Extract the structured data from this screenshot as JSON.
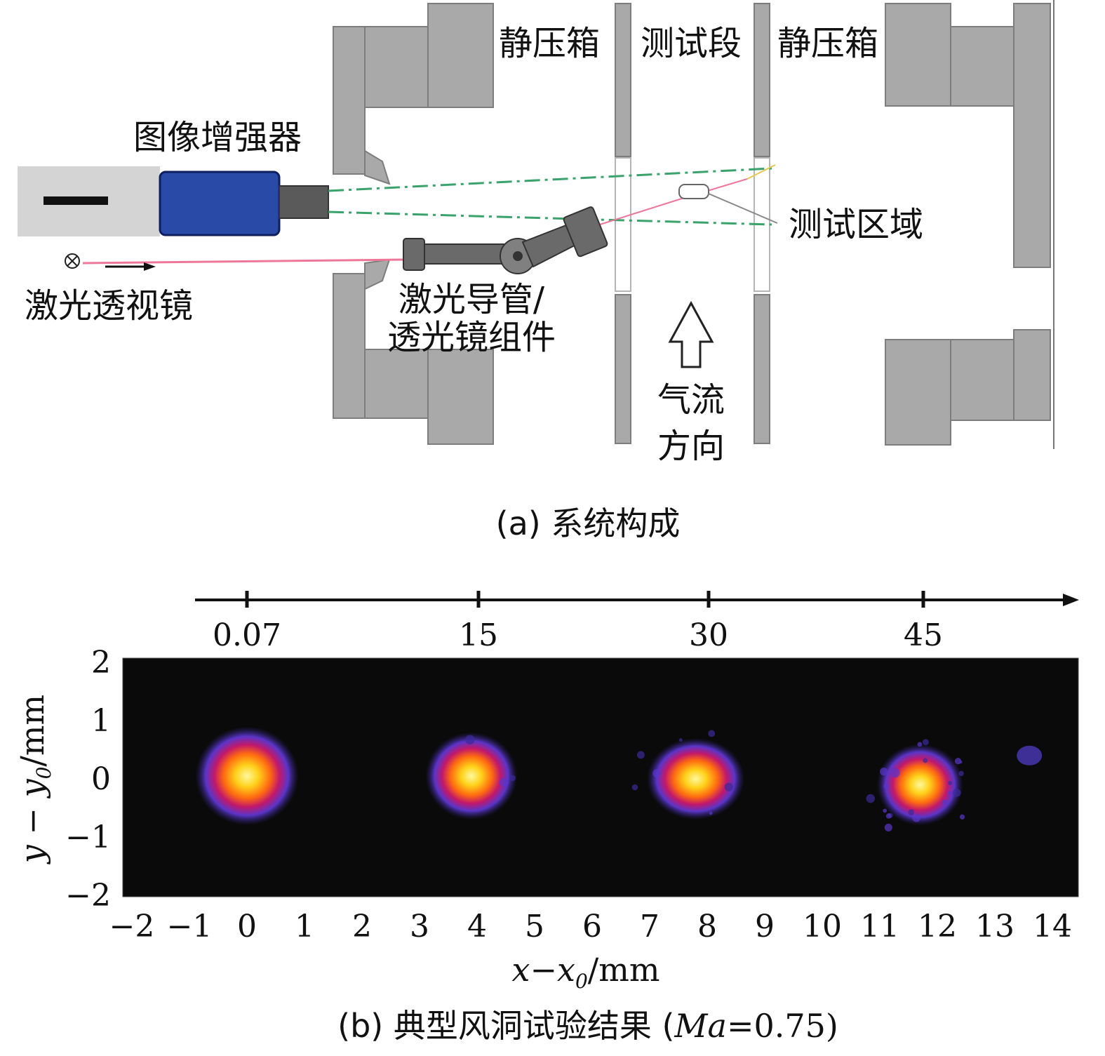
{
  "panel_a": {
    "labels": {
      "static_box_left": "静压箱",
      "test_section": "测试段",
      "static_box_right": "静压箱",
      "image_intensifier": "图像增强器",
      "test_region": "测试区域",
      "laser_viewer": "激光透视镜",
      "laser_guide_line1": "激光导管/",
      "laser_guide_line2": "透光镜组件",
      "airflow_line1": "气流",
      "airflow_line2": "方向"
    },
    "caption": "(a) 系统构成",
    "colors": {
      "wall": "#a9a9a9",
      "camera_body": "#d4d4d4",
      "intensifier": "#2a4aa8",
      "laser_beam": "#ee7799",
      "green_path": "#3aa36b"
    }
  },
  "panel_b": {
    "top_axis_ticks": [
      "0.07",
      "15",
      "30",
      "45"
    ],
    "caption_prefix": "(b) 典型风洞试验结果 (",
    "caption_ma": "Ma",
    "caption_suffix": "=0.75)",
    "colors": {
      "background": "#0a0a0a"
    }
  },
  "chart_data": {
    "type": "heatmap",
    "xlabel": "x−x0/mm",
    "ylabel": "y − y0/mm",
    "xlim": [
      -2,
      14
    ],
    "ylim": [
      -2,
      2
    ],
    "x_ticks": [
      "−2",
      "−1",
      "0",
      "1",
      "2",
      "3",
      "4",
      "5",
      "6",
      "7",
      "8",
      "9",
      "10",
      "11",
      "12",
      "13",
      "14"
    ],
    "y_ticks": [
      "2",
      "1",
      "0",
      "−1",
      "−2"
    ],
    "top_axis_ticks": [
      "0.07",
      "15",
      "30",
      "45"
    ],
    "spots": [
      {
        "label": "0.07",
        "x": 0.0,
        "y": 0.05,
        "rx": 0.9,
        "ry": 0.85,
        "noise": 0.0
      },
      {
        "label": "15",
        "x": 3.9,
        "y": 0.05,
        "rx": 0.8,
        "ry": 0.75,
        "noise": 0.05
      },
      {
        "label": "30",
        "x": 7.8,
        "y": 0.0,
        "rx": 0.85,
        "ry": 0.7,
        "noise": 0.12
      },
      {
        "label": "45",
        "x": 11.7,
        "y": -0.1,
        "rx": 0.75,
        "ry": 0.7,
        "noise": 0.35
      }
    ]
  }
}
